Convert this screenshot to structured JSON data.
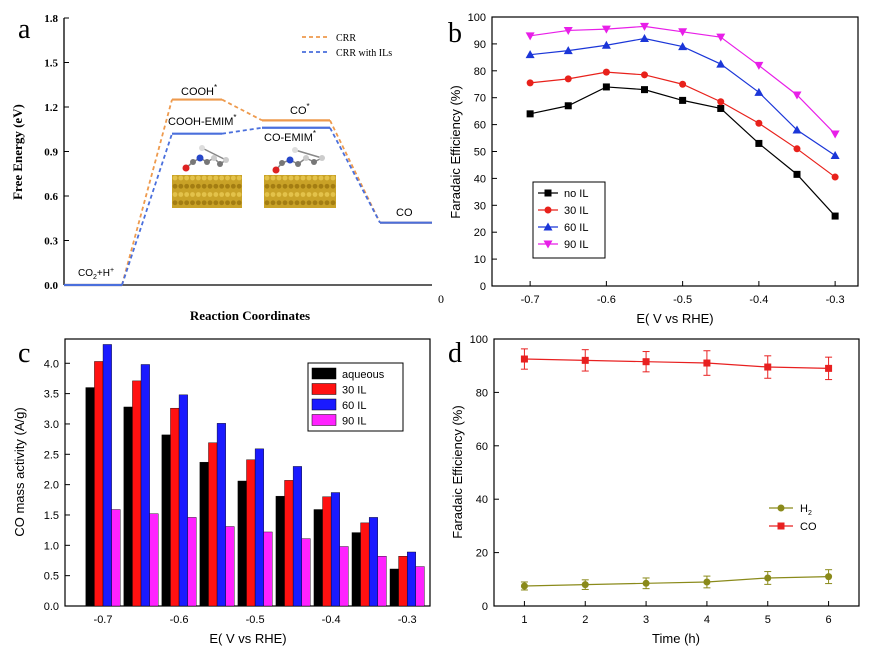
{
  "panels": {
    "a": "a",
    "b": "b",
    "c": "c",
    "d": "d"
  },
  "chart_data": [
    {
      "id": "a",
      "type": "line",
      "xlabel": "Reaction Coordinates",
      "ylabel": "Free Energy (eV)",
      "ylim": [
        0,
        1.8
      ],
      "yticks": [
        "0.0",
        "0.3",
        "0.6",
        "0.9",
        "1.2",
        "1.5",
        "1.8"
      ],
      "xaxis_end_label": "0",
      "legend_position": "top-right",
      "series": [
        {
          "name": "CRR",
          "color": "#ee9a4d",
          "levels": [
            {
              "label": "CO2+H+",
              "value": 0.0
            },
            {
              "label": "COOH*",
              "value": 1.25
            },
            {
              "label": "CO*",
              "value": 1.11
            },
            {
              "label": "CO",
              "value": 0.42
            }
          ]
        },
        {
          "name": "CRR with ILs",
          "color": "#4a6fdc",
          "levels": [
            {
              "label": "CO2+H+",
              "value": 0.0
            },
            {
              "label": "COOH-EMIM*",
              "value": 1.02
            },
            {
              "label": "CO-EMIM*",
              "value": 1.06
            },
            {
              "label": "CO",
              "value": 0.42
            }
          ]
        }
      ],
      "level_labels": {
        "start": "CO",
        "start_sub": "2",
        "start_rest": "+H",
        "start_sup": "+",
        "cooh": "COOH",
        "cooh_sup": "*",
        "co": "CO",
        "co_sup": "*",
        "cooh_emim": "COOH-EMIM",
        "cooh_emim_sup": "*",
        "co_emim": "CO-EMIM",
        "co_emim_sup": "*",
        "co_final": "CO"
      }
    },
    {
      "id": "b",
      "type": "line",
      "xlabel": "E(  V vs RHE)",
      "ylabel": "Faradaic Efficiency (%)",
      "xlim": [
        -0.75,
        -0.27
      ],
      "ylim": [
        0,
        100
      ],
      "xticks": [
        -0.7,
        -0.6,
        -0.5,
        -0.4,
        -0.3
      ],
      "xtick_labels": [
        "-0.7",
        "-0.6",
        "-0.5",
        "-0.4",
        "-0.3"
      ],
      "yticks": [
        0,
        10,
        20,
        30,
        40,
        50,
        60,
        70,
        80,
        90,
        100
      ],
      "legend_position": "bottom-left",
      "x": [
        -0.7,
        -0.65,
        -0.6,
        -0.55,
        -0.5,
        -0.45,
        -0.4,
        -0.35,
        -0.3
      ],
      "series": [
        {
          "name": "no IL",
          "color": "#000000",
          "marker": "square",
          "values": [
            64,
            67,
            74,
            73,
            69,
            66,
            53,
            41.5,
            26
          ]
        },
        {
          "name": "30 IL",
          "color": "#e8211b",
          "marker": "circle",
          "values": [
            75.5,
            77,
            79.5,
            78.5,
            75,
            68.5,
            60.5,
            51,
            40.5
          ]
        },
        {
          "name": "60 IL",
          "color": "#1b36d8",
          "marker": "triangle-up",
          "values": [
            86,
            87.5,
            89.5,
            92,
            89,
            82.5,
            72,
            58,
            48.5
          ]
        },
        {
          "name": "90 IL",
          "color": "#e81ee8",
          "marker": "triangle-down",
          "values": [
            93,
            95,
            95.5,
            96.5,
            94.5,
            92.5,
            82,
            71,
            56.5
          ]
        }
      ]
    },
    {
      "id": "c",
      "type": "bar",
      "xlabel": "E(  V vs RHE)",
      "ylabel": "CO mass activity (A/g)",
      "xlim": [
        -0.75,
        -0.27
      ],
      "ylim": [
        0,
        4.4
      ],
      "xticks": [
        -0.7,
        -0.6,
        -0.5,
        -0.4,
        -0.3
      ],
      "xtick_labels": [
        "-0.7",
        "-0.6",
        "-0.5",
        "-0.4",
        "-0.3"
      ],
      "yticks": [
        "0.0",
        "0.5",
        "1.0",
        "1.5",
        "2.0",
        "2.5",
        "3.0",
        "3.5",
        "4.0"
      ],
      "legend_position": "top-right",
      "categories": [
        -0.7,
        -0.65,
        -0.6,
        -0.55,
        -0.5,
        -0.45,
        -0.4,
        -0.35,
        -0.3
      ],
      "series": [
        {
          "name": "aqueous",
          "color": "#000000",
          "values": [
            3.6,
            3.28,
            2.82,
            2.37,
            2.06,
            1.81,
            1.59,
            1.21,
            0.61
          ]
        },
        {
          "name": "30 IL",
          "color": "#ff1111",
          "values": [
            4.03,
            3.71,
            3.26,
            2.69,
            2.41,
            2.07,
            1.8,
            1.37,
            0.82
          ]
        },
        {
          "name": "60 IL",
          "color": "#1a1aff",
          "values": [
            4.31,
            3.98,
            3.48,
            3.01,
            2.59,
            2.3,
            1.87,
            1.46,
            0.89
          ]
        },
        {
          "name": "90 IL",
          "color": "#ff22ff",
          "values": [
            1.59,
            1.52,
            1.46,
            1.31,
            1.22,
            1.11,
            0.98,
            0.82,
            0.65
          ]
        }
      ]
    },
    {
      "id": "d",
      "type": "line",
      "xlabel": "Time (h)",
      "ylabel": "Faradaic Efficiency (%)",
      "xlim": [
        0.5,
        6.5
      ],
      "ylim": [
        0,
        100
      ],
      "xticks": [
        1,
        2,
        3,
        4,
        5,
        6
      ],
      "yticks": [
        0,
        20,
        40,
        60,
        80,
        100
      ],
      "legend_position": "bottom-right",
      "x": [
        1,
        2,
        3,
        4,
        5,
        6
      ],
      "series": [
        {
          "name": "H2",
          "label_base": "H",
          "label_sub": "2",
          "color": "#8a8a1a",
          "marker": "circle",
          "values": [
            7.5,
            8,
            8.5,
            9,
            10.5,
            11
          ],
          "errors": [
            1.5,
            1.8,
            2,
            2.2,
            2.4,
            2.6
          ]
        },
        {
          "name": "CO",
          "label_base": "CO",
          "label_sub": "",
          "color": "#e82020",
          "marker": "square",
          "values": [
            92.5,
            92,
            91.5,
            91,
            89.5,
            89
          ],
          "errors": [
            3.8,
            4,
            3.8,
            4.6,
            4.2,
            4.2
          ]
        }
      ]
    }
  ]
}
